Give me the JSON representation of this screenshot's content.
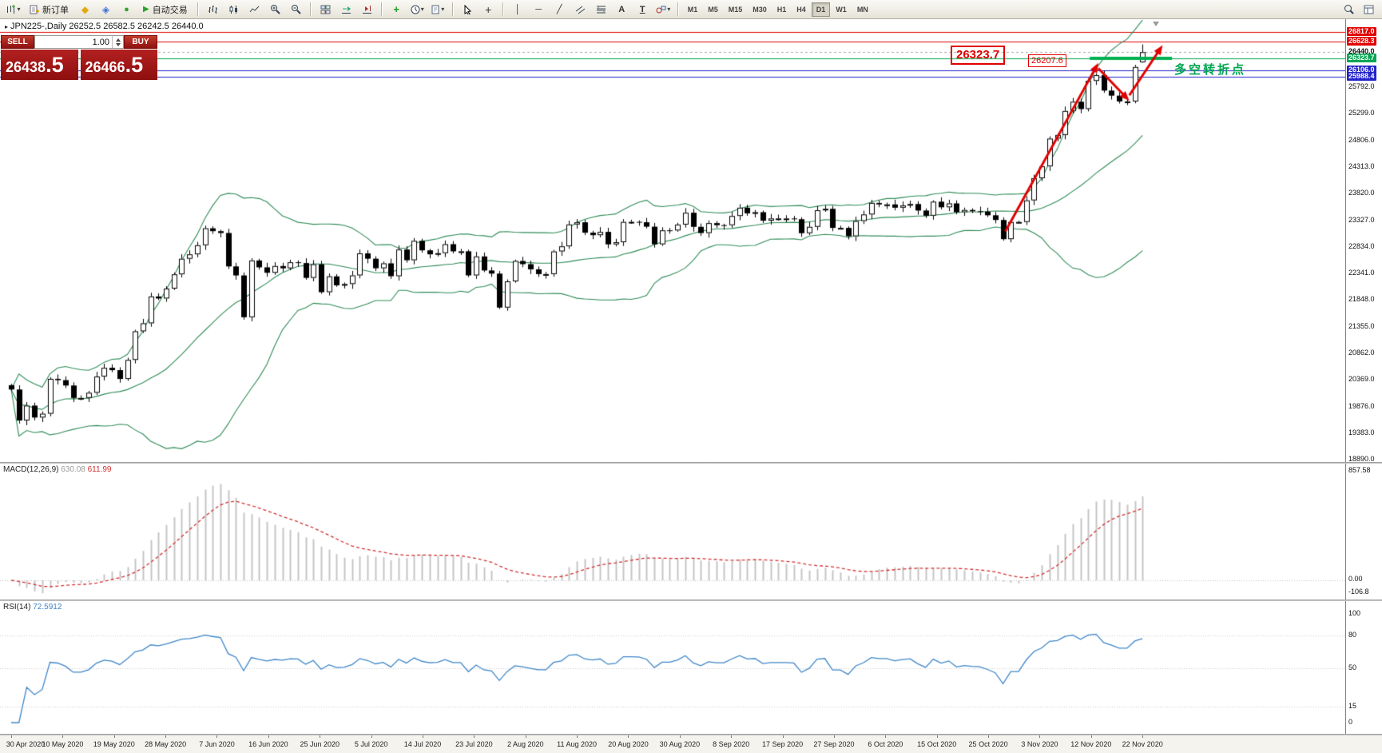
{
  "toolbar": {
    "new_order_label": "新订单",
    "autotrading_label": "自动交易",
    "timeframes": [
      "M1",
      "M5",
      "M15",
      "M30",
      "H1",
      "H4",
      "D1",
      "W1",
      "MN"
    ],
    "active_timeframe": "D1"
  },
  "icons": {
    "symbol_marker": "▸",
    "dropdown_caret": "▾",
    "metaeditor": "◆",
    "market": "◈",
    "community": "●",
    "autotrading_play": "▶",
    "indicators_plus": "+",
    "crosshair": "+",
    "vertical_line": "│",
    "horizontal_line": "─",
    "trend_line": "╱",
    "text_tool": "A",
    "label_tool": "T"
  },
  "chart": {
    "symbol_title": "JPN225-,Daily",
    "ohlc_text": "26252.5 26582.5 26242.5 26440.0",
    "open": "26252.5",
    "high": "26582.5",
    "low": "26242.5",
    "close": "26440.0"
  },
  "trade_panel": {
    "sell_label": "SELL",
    "buy_label": "BUY",
    "volume": "1.00",
    "sell_price_main": "26438",
    "sell_price_pip": ".5",
    "buy_price_main": "26466",
    "buy_price_pip": ".5"
  },
  "annotations": {
    "resistance_box": "26323.7",
    "breakout_box": "26207.6",
    "note_text": "多空转折点",
    "note_color": "#00a651"
  },
  "price_scale": {
    "current": "26440.0",
    "ticks": [
      "25792.0",
      "25299.0",
      "24806.0",
      "24313.0",
      "23820.0",
      "23327.0",
      "22834.0",
      "22341.0",
      "21848.0",
      "21355.0",
      "20862.0",
      "20369.0",
      "19876.0",
      "19383.0",
      "18890.0"
    ],
    "lines": [
      {
        "price": "26817.0",
        "color": "#e00000"
      },
      {
        "price": "26628.3",
        "color": "#e00000"
      },
      {
        "price": "26323.7",
        "color": "#00a651"
      },
      {
        "price": "26106.0",
        "color": "#2222cc"
      },
      {
        "price": "25988.4",
        "color": "#2222cc"
      }
    ]
  },
  "chart_data": {
    "type": "candlestick",
    "symbol": "JPN225",
    "timeframe": "Daily",
    "price_range": [
      18850,
      27050
    ],
    "closes": [
      20193,
      19619,
      19895,
      19674,
      19745,
      20390,
      20366,
      20267,
      20037,
      20037,
      20133,
      20433,
      20595,
      20552,
      20388,
      20741,
      21271,
      21419,
      21916,
      21878,
      22062,
      22326,
      22614,
      22696,
      22864,
      23178,
      23125,
      23091,
      22472,
      22305,
      21531,
      22582,
      22455,
      22355,
      22479,
      22437,
      22549,
      22534,
      22260,
      22512,
      21995,
      22288,
      22122,
      22146,
      22306,
      22714,
      22615,
      22438,
      22529,
      22291,
      22785,
      22587,
      22946,
      22770,
      22696,
      22717,
      22884,
      22751,
      22752,
      22306,
      22657,
      22397,
      22339,
      21710,
      22195,
      22573,
      22514,
      22418,
      22330,
      22330,
      22750,
      22844,
      23249,
      23289,
      23097,
      23051,
      23111,
      22880,
      22920,
      23296,
      23297,
      23290,
      23208,
      22882,
      23140,
      23138,
      23247,
      23466,
      23205,
      23090,
      23274,
      23236,
      23235,
      23406,
      23559,
      23455,
      23476,
      23319,
      23360,
      23360,
      23360,
      23346,
      23087,
      23205,
      23512,
      23539,
      23185,
      23185,
      23030,
      23312,
      23434,
      23647,
      23620,
      23620,
      23559,
      23601,
      23627,
      23507,
      23411,
      23671,
      23567,
      23639,
      23475,
      23517,
      23494,
      23486,
      23419,
      23332,
      22977,
      23295,
      23295,
      23695,
      24105,
      24325,
      24839,
      24906,
      25350,
      25521,
      25386,
      25907,
      26014,
      25728,
      25634,
      25527,
      25527,
      26165,
      26440
    ],
    "last_candle": {
      "open": 26252.5,
      "high": 26582.5,
      "low": 26242.5,
      "close": 26440.0
    },
    "overlays": {
      "bollinger": {
        "period": 20,
        "deviation": 2,
        "color": "#2e8b57"
      }
    },
    "trend_arrows": [
      {
        "from_index": 128.3,
        "from_price": 23120,
        "to_index": 140.3,
        "to_price": 26240,
        "direction": "up"
      },
      {
        "from_index": 140.3,
        "from_price": 26140,
        "to_index": 144.3,
        "to_price": 25540,
        "direction": "down"
      },
      {
        "from_index": 144.3,
        "from_price": 25640,
        "to_index": 148.6,
        "to_price": 26570,
        "direction": "up"
      }
    ],
    "highlight_segment": {
      "price": 26323.7,
      "from_index": 139.2,
      "to_index": 149.8,
      "color": "#00b050"
    }
  },
  "macd": {
    "label": "MACD(12,26,9)",
    "main_value": "630.08",
    "signal_value": "611.99",
    "scale_max": "857.58",
    "scale_zero": "0.00",
    "scale_min": "-106.8",
    "fast": 12,
    "slow": 26,
    "signal": 9,
    "histogram_color": "#c4c4c4",
    "signal_color": "#d23030"
  },
  "rsi": {
    "label": "RSI(14)",
    "value": "72.5912",
    "period": 14,
    "levels": [
      100,
      80,
      50,
      15,
      0
    ],
    "line_color": "#3e86c8"
  },
  "time_axis": {
    "labels": [
      "30 Apr 2020",
      "10 May 2020",
      "19 May 2020",
      "28 May 2020",
      "7 Jun 2020",
      "16 Jun 2020",
      "25 Jun 2020",
      "5 Jul 2020",
      "14 Jul 2020",
      "23 Jul 2020",
      "2 Aug 2020",
      "11 Aug 2020",
      "20 Aug 2020",
      "30 Aug 2020",
      "8 Sep 2020",
      "17 Sep 2020",
      "27 Sep 2020",
      "6 Oct 2020",
      "15 Oct 2020",
      "25 Oct 2020",
      "3 Nov 2020",
      "12 Nov 2020",
      "22 Nov 2020"
    ]
  }
}
